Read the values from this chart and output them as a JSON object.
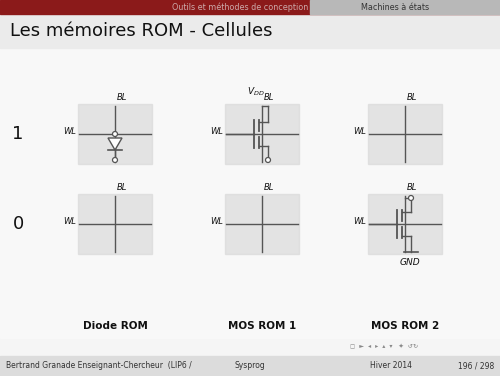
{
  "title": "Les mémoires ROM - Cellules",
  "header_left": "Outils et méthodes de conception",
  "header_right": "Machines à états",
  "footer_left": "Bertrand Granade Enseignant-Chercheur  (LIP6 /",
  "footer_center": "Sysprog",
  "footer_right": "Hiver 2014",
  "footer_page": "196 / 298",
  "label_1": "1",
  "label_0": "0",
  "col_labels": [
    "Diode ROM",
    "MOS ROM 1",
    "MOS ROM 2"
  ],
  "header_dark": "#8b1a1a",
  "header_light": "#b0b0b0",
  "header_active": "#c8c8c8",
  "slide_bg": "#f5f5f5",
  "title_bg": "#ebebeb",
  "cell_bg": "#d8d8d8",
  "footer_bg": "#dcdcdc",
  "line_color": "#555555",
  "text_color": "#111111",
  "footer_text": "#333333"
}
